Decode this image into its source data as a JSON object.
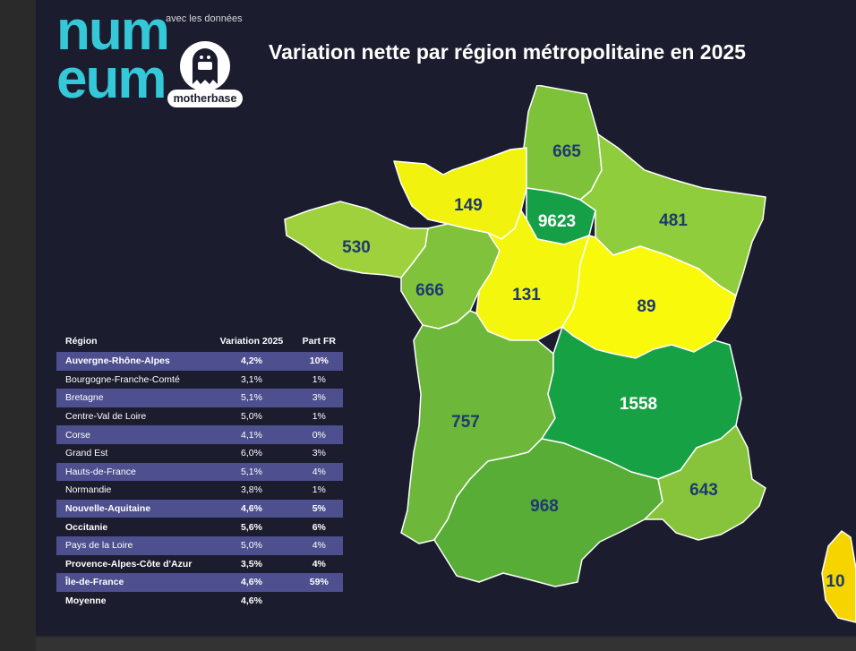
{
  "header": {
    "logo_top": "num",
    "logo_bottom": "eum",
    "partner_text": "avec les données",
    "partner_name": "motherbase",
    "title": "Variation nette par région métropolitaine en 2025"
  },
  "chart_data": {
    "type": "choropleth-map",
    "title": "Variation nette par région métropolitaine en 2025",
    "legend": "none",
    "regions": [
      {
        "name": "Hauts-de-France",
        "value": 665,
        "color": "#7ec23a"
      },
      {
        "name": "Normandie",
        "value": 149,
        "color": "#f2f20f"
      },
      {
        "name": "Île-de-France",
        "value": 9623,
        "color": "#15a048"
      },
      {
        "name": "Grand Est",
        "value": 481,
        "color": "#8fcd3c"
      },
      {
        "name": "Bretagne",
        "value": 530,
        "color": "#9ed13c"
      },
      {
        "name": "Pays de la Loire",
        "value": 666,
        "color": "#80c23b"
      },
      {
        "name": "Centre-Val de Loire",
        "value": 131,
        "color": "#f5f60e"
      },
      {
        "name": "Bourgogne-Franche-Comté",
        "value": 89,
        "color": "#f9f90c"
      },
      {
        "name": "Nouvelle-Aquitaine",
        "value": 757,
        "color": "#6db73a"
      },
      {
        "name": "Auvergne-Rhône-Alpes",
        "value": 1558,
        "color": "#17a145"
      },
      {
        "name": "Occitanie",
        "value": 968,
        "color": "#57ad36"
      },
      {
        "name": "Provence-Alpes-Côte d'Azur",
        "value": 643,
        "color": "#88c43b"
      },
      {
        "name": "Corse",
        "value": 10,
        "color": "#f5d400"
      }
    ],
    "table": {
      "columns": [
        "Région",
        "Variation 2025",
        "Part FR"
      ],
      "rows": [
        {
          "region": "Auvergne-Rhône-Alpes",
          "variation": "4,2%",
          "part": "10%",
          "highlight": true,
          "bold": true
        },
        {
          "region": "Bourgogne-Franche-Comté",
          "variation": "3,1%",
          "part": "1%",
          "highlight": false,
          "bold": false
        },
        {
          "region": "Bretagne",
          "variation": "5,1%",
          "part": "3%",
          "highlight": true,
          "bold": false
        },
        {
          "region": "Centre-Val de Loire",
          "variation": "5,0%",
          "part": "1%",
          "highlight": false,
          "bold": false
        },
        {
          "region": "Corse",
          "variation": "4,1%",
          "part": "0%",
          "highlight": true,
          "bold": false
        },
        {
          "region": "Grand Est",
          "variation": "6,0%",
          "part": "3%",
          "highlight": false,
          "bold": false
        },
        {
          "region": "Hauts-de-France",
          "variation": "5,1%",
          "part": "4%",
          "highlight": true,
          "bold": false
        },
        {
          "region": "Normandie",
          "variation": "3,8%",
          "part": "1%",
          "highlight": false,
          "bold": false
        },
        {
          "region": "Nouvelle-Aquitaine",
          "variation": "4,6%",
          "part": "5%",
          "highlight": true,
          "bold": true
        },
        {
          "region": "Occitanie",
          "variation": "5,6%",
          "part": "6%",
          "highlight": false,
          "bold": true
        },
        {
          "region": "Pays de la Loire",
          "variation": "5,0%",
          "part": "4%",
          "highlight": true,
          "bold": false
        },
        {
          "region": "Provence-Alpes-Côte d'Azur",
          "variation": "3,5%",
          "part": "4%",
          "highlight": false,
          "bold": true
        },
        {
          "region": "Île-de-France",
          "variation": "4,6%",
          "part": "59%",
          "highlight": true,
          "bold": true
        },
        {
          "region": "Moyenne",
          "variation": "4,6%",
          "part": "",
          "highlight": false,
          "bold": true
        }
      ]
    }
  }
}
